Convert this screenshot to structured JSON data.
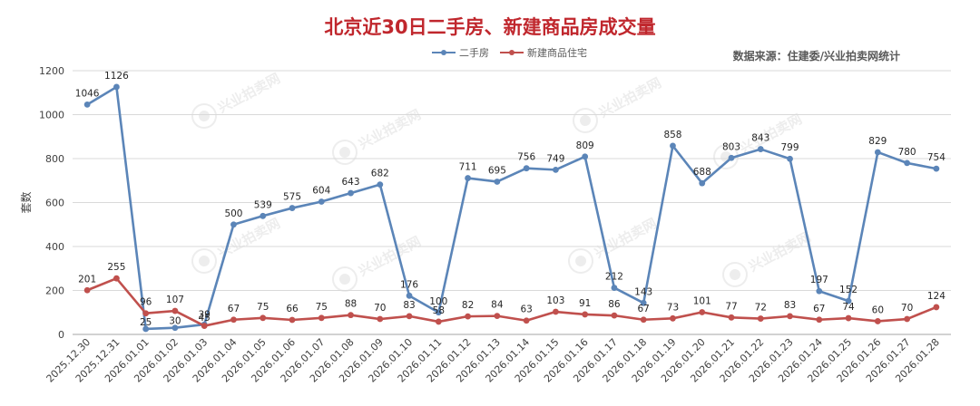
{
  "title": "北京近30日二手房、新建商品房成交量",
  "source_text": "数据来源：住建委/兴业拍卖网统计",
  "watermark_text": "兴业拍卖网",
  "colors": {
    "series1": "#5b85b8",
    "series2": "#c0504d",
    "title": "#c0272d"
  },
  "chart_data": {
    "type": "line",
    "title": "北京近30日二手房、新建商品房成交量",
    "xlabel": "",
    "ylabel": "套数",
    "ylim": [
      0,
      1200
    ],
    "yticks": [
      0,
      200,
      400,
      600,
      800,
      1000,
      1200
    ],
    "grid": true,
    "legend_position": "top-center",
    "categories": [
      "2025.12.30",
      "2025.12.31",
      "2026.01.01",
      "2026.01.02",
      "2026.01.03",
      "2026.01.04",
      "2026.01.05",
      "2026.01.06",
      "2026.01.07",
      "2026.01.08",
      "2026.01.09",
      "2026.01.10",
      "2026.01.11",
      "2026.01.12",
      "2026.01.13",
      "2026.01.14",
      "2026.01.15",
      "2026.01.16",
      "2026.01.17",
      "2026.01.18",
      "2026.01.19",
      "2026.01.20",
      "2026.01.21",
      "2026.01.22",
      "2026.01.23",
      "2026.01.24",
      "2026.01.25",
      "2026.01.26",
      "2026.01.27",
      "2026.01.28"
    ],
    "series": [
      {
        "name": "二手房",
        "values": [
          1046,
          1126,
          25,
          30,
          45,
          500,
          539,
          575,
          604,
          643,
          682,
          176,
          100,
          711,
          695,
          756,
          749,
          809,
          212,
          143,
          858,
          688,
          803,
          843,
          799,
          197,
          152,
          829,
          780,
          754
        ]
      },
      {
        "name": "新建商品住宅",
        "values": [
          201,
          255,
          96,
          107,
          39,
          67,
          75,
          66,
          75,
          88,
          70,
          83,
          58,
          82,
          84,
          63,
          103,
          91,
          86,
          67,
          73,
          101,
          77,
          72,
          83,
          67,
          74,
          60,
          70,
          124
        ]
      }
    ]
  }
}
